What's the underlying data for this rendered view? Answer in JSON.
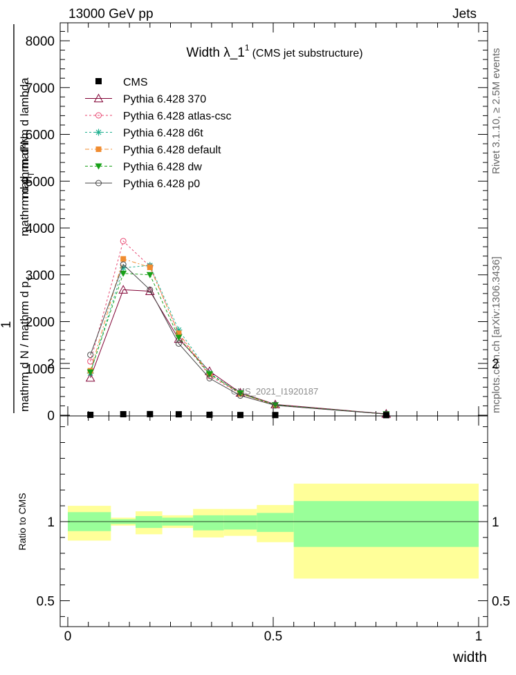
{
  "header": {
    "left": "13000 GeV pp",
    "right": "Jets"
  },
  "side_labels": {
    "rivet": "Rivet 3.1.10, ≥ 2.5M events",
    "mcplots": "mcplots.cern.ch [arXiv:1306.3436]"
  },
  "chart_data": [
    {
      "type": "line",
      "title": "Width λ_1",
      "title_superscript": "1",
      "subtitle": "(CMS jet substructure)",
      "ylabel_parts": [
        "1",
        "mathrm d N / mathrm d p",
        "T",
        "mathrm d p",
        "T",
        "mathrm d lambda",
        "mathrm d²N"
      ],
      "watermark": "CMS_2021_I1920187",
      "xlim": [
        0,
        1
      ],
      "ylim": [
        0,
        8000
      ],
      "y_ticks": [
        0,
        1000,
        2000,
        3000,
        4000,
        5000,
        6000,
        7000,
        8000
      ],
      "y_tick_labels": [
        "0",
        "1000",
        "2000",
        "3000",
        "4000",
        "5000",
        "6000",
        "7000",
        "8000"
      ],
      "legend_position": "top-left",
      "x": [
        0.055,
        0.135,
        0.2,
        0.27,
        0.345,
        0.42,
        0.505,
        0.775
      ],
      "data_series": {
        "name": "CMS",
        "values": [
          8,
          22,
          24,
          20,
          9,
          5,
          4,
          2
        ]
      },
      "series": [
        {
          "name": "Pythia 6.428 370",
          "color": "#800033",
          "dash": "",
          "marker": "triangle-open",
          "values": [
            800,
            2680,
            2650,
            1630,
            940,
            480,
            230,
            30
          ]
        },
        {
          "name": "Pythia 6.428 atlas-csc",
          "color": "#e8436e",
          "dash": "3,3",
          "marker": "circle-open",
          "values": [
            1150,
            3720,
            3180,
            1730,
            840,
            460,
            210,
            25
          ]
        },
        {
          "name": "Pythia 6.428 d6t",
          "color": "#20b090",
          "dash": "3,3",
          "marker": "star",
          "values": [
            900,
            3150,
            3200,
            1820,
            900,
            470,
            220,
            25
          ]
        },
        {
          "name": "Pythia 6.428 default",
          "color": "#f08c30",
          "dash": "6,3,2,3",
          "marker": "square",
          "values": [
            950,
            3340,
            3160,
            1750,
            880,
            460,
            215,
            25
          ]
        },
        {
          "name": "Pythia 6.428 dw",
          "color": "#18a018",
          "dash": "4,3",
          "marker": "triangle-down",
          "values": [
            920,
            3030,
            3000,
            1660,
            880,
            470,
            220,
            25
          ]
        },
        {
          "name": "Pythia 6.428 p0",
          "color": "#444444",
          "dash": "",
          "marker": "circle-open",
          "values": [
            1290,
            3220,
            2680,
            1530,
            790,
            420,
            210,
            25
          ]
        }
      ]
    },
    {
      "type": "area",
      "ylabel": "Ratio to CMS",
      "xlabel": "width",
      "xlim": [
        0,
        1
      ],
      "ylim": [
        0.35,
        2.3
      ],
      "x_ticks": [
        0,
        0.5,
        1
      ],
      "x_tick_labels": [
        "0",
        "0.5",
        "1"
      ],
      "y_ticks": [
        0.5,
        1,
        2
      ],
      "y_tick_labels": [
        "0.5",
        "1",
        "2"
      ],
      "bins": [
        {
          "lo": 0.0,
          "hi": 0.105,
          "green_lo": 0.94,
          "green_hi": 1.06,
          "yellow_lo": 0.88,
          "yellow_hi": 1.1
        },
        {
          "lo": 0.105,
          "hi": 0.165,
          "green_lo": 0.985,
          "green_hi": 1.015,
          "yellow_lo": 0.975,
          "yellow_hi": 1.025
        },
        {
          "lo": 0.165,
          "hi": 0.23,
          "green_lo": 0.96,
          "green_hi": 1.035,
          "yellow_lo": 0.92,
          "yellow_hi": 1.065
        },
        {
          "lo": 0.23,
          "hi": 0.305,
          "green_lo": 0.975,
          "green_hi": 1.025,
          "yellow_lo": 0.96,
          "yellow_hi": 1.04
        },
        {
          "lo": 0.305,
          "hi": 0.38,
          "green_lo": 0.945,
          "green_hi": 1.04,
          "yellow_lo": 0.9,
          "yellow_hi": 1.08
        },
        {
          "lo": 0.38,
          "hi": 0.46,
          "green_lo": 0.95,
          "green_hi": 1.04,
          "yellow_lo": 0.91,
          "yellow_hi": 1.08
        },
        {
          "lo": 0.46,
          "hi": 0.55,
          "green_lo": 0.935,
          "green_hi": 1.055,
          "yellow_lo": 0.87,
          "yellow_hi": 1.105
        },
        {
          "lo": 0.55,
          "hi": 1.0,
          "green_lo": 0.84,
          "green_hi": 1.13,
          "yellow_lo": 0.64,
          "yellow_hi": 1.24
        }
      ]
    }
  ]
}
